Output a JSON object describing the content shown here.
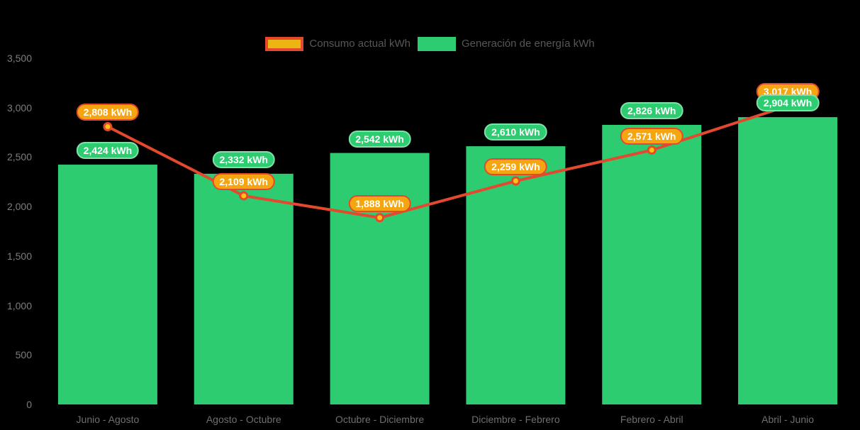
{
  "page": {
    "background": "#000000"
  },
  "legend": {
    "items": [
      {
        "label": "Consumo actual kWh",
        "swatch_fill": "#EDB511",
        "swatch_border": "#E2492F"
      },
      {
        "label": "Generación de energía kWh",
        "swatch_fill": "#2ECC71",
        "swatch_border": ""
      }
    ]
  },
  "chart_data": {
    "type": "bar",
    "subtype": "bar-and-line-combo",
    "title": "",
    "xlabel": "",
    "ylabel": "",
    "categories": [
      "Junio - Agosto",
      "Agosto - Octubre",
      "Octubre - Diciembre",
      "Diciembre - Febrero",
      "Febrero - Abril",
      "Abril - Junio"
    ],
    "series": [
      {
        "name": "Consumo actual kWh",
        "type": "line",
        "values": [
          2808,
          2109,
          1888,
          2259,
          2571,
          3017
        ],
        "point_labels": [
          "2,808 kWh",
          "2,109 kWh",
          "1,888 kWh",
          "2,259 kWh",
          "2,571 kWh",
          "3,017 kWh"
        ],
        "line_color": "#E2492F",
        "marker_fill": "#FFC40D",
        "marker_stroke": "#E2492F",
        "label_bg": "#F5A50F",
        "label_border": "#E2492F"
      },
      {
        "name": "Generación de energía kWh",
        "type": "bar",
        "values": [
          2424,
          2332,
          2542,
          2610,
          2826,
          2904
        ],
        "point_labels": [
          "2,424 kWh",
          "2,332 kWh",
          "2,542 kWh",
          "2,610 kWh",
          "2,826 kWh",
          "2,904 kWh"
        ],
        "bar_color": "#2ECC71",
        "label_bg": "#2ECC71"
      }
    ],
    "ylim": [
      0,
      3500
    ],
    "yticks": [
      0,
      500,
      1000,
      1500,
      2000,
      2500,
      3000,
      3500
    ],
    "ytick_labels": [
      "0",
      "500",
      "1,000",
      "1,500",
      "2,000",
      "2,500",
      "3,000",
      "3,500"
    ],
    "grid": false,
    "legend_position": "top",
    "axis_tick_color": "#7d7d7d",
    "background": "#000000"
  }
}
